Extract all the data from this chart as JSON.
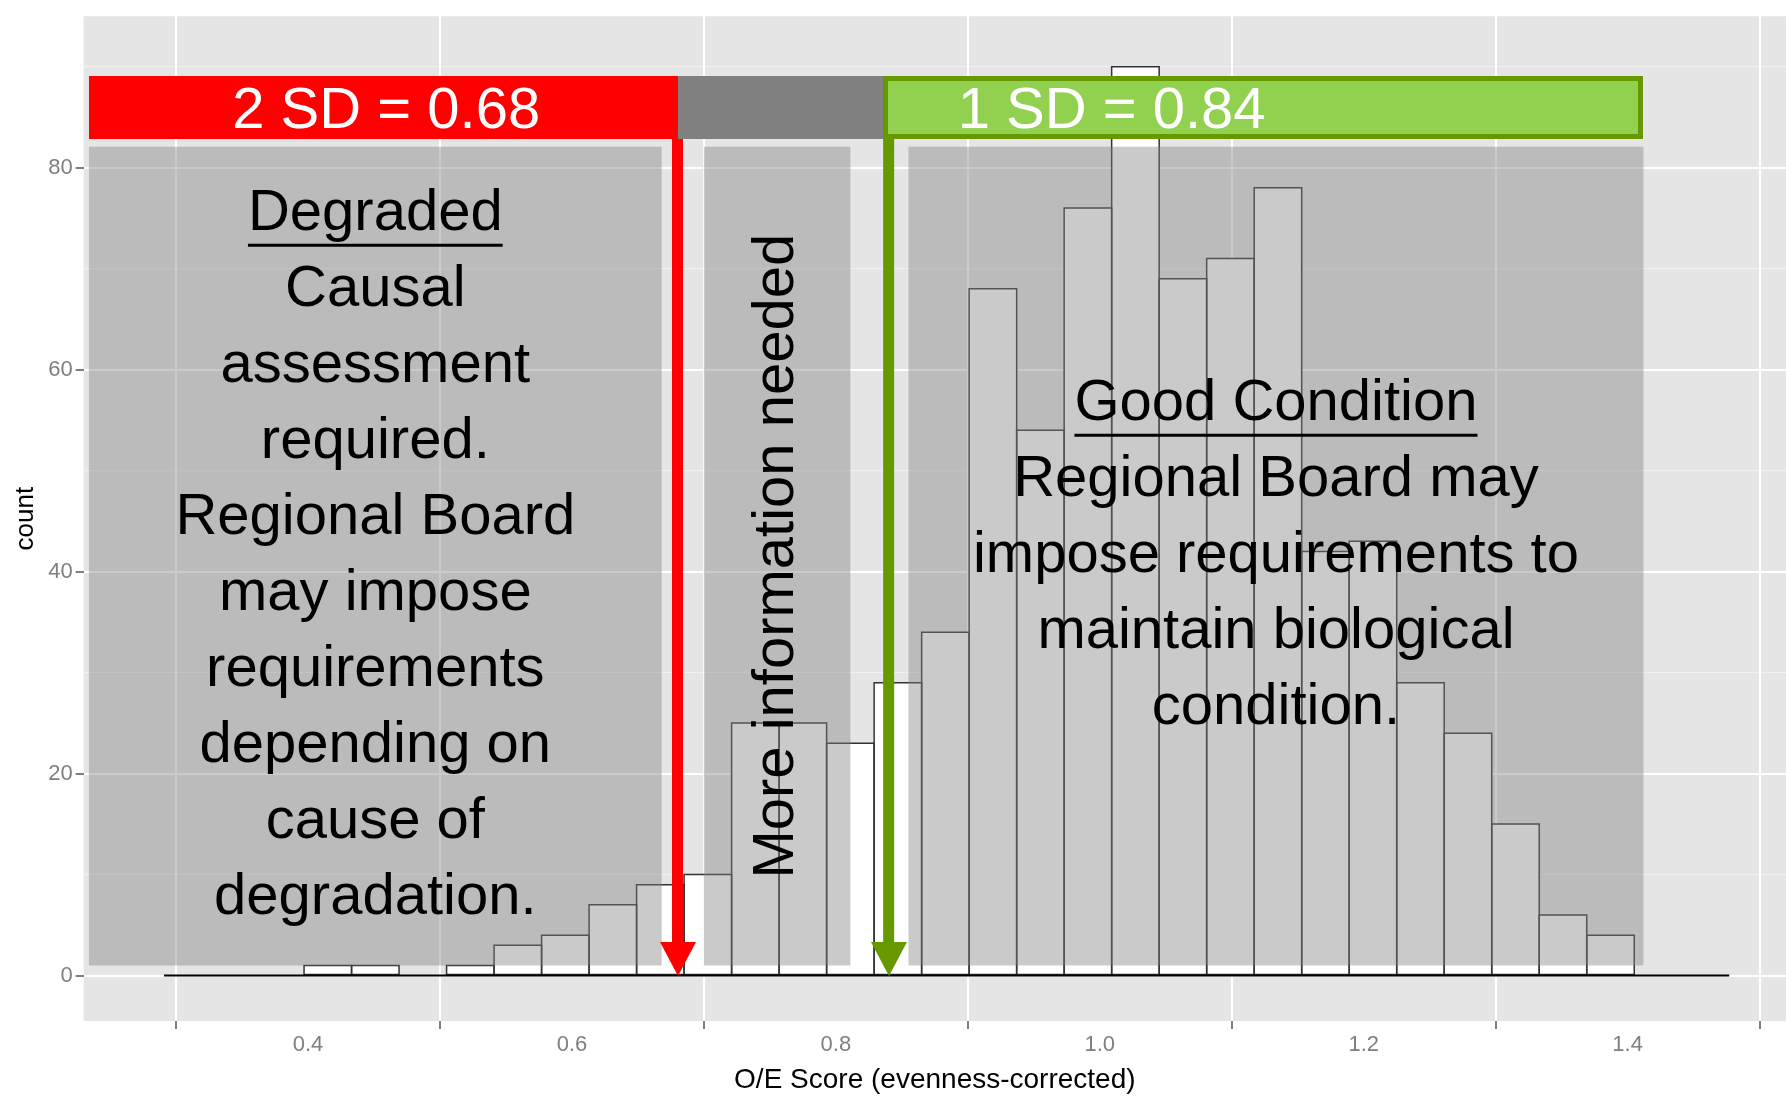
{
  "chart_data": {
    "type": "histogram",
    "xlabel": "O/E Score (evenness-corrected)",
    "ylabel": "count",
    "bins": [
      0.397,
      0.433,
      0.469,
      0.505,
      0.541,
      0.577,
      0.613,
      0.649,
      0.685,
      0.721,
      0.757,
      0.793,
      0.829,
      0.865,
      0.901,
      0.937,
      0.973,
      1.009,
      1.045,
      1.081,
      1.117,
      1.153,
      1.189,
      1.225,
      1.261,
      1.297,
      1.333,
      1.369,
      1.405
    ],
    "values": [
      1,
      1,
      0,
      1,
      3,
      4,
      7,
      9,
      10,
      25,
      25,
      23,
      29,
      34,
      68,
      54,
      76,
      90,
      69,
      71,
      78,
      42,
      43,
      29,
      24,
      15,
      6,
      4
    ],
    "color": "#ffffff",
    "xlim": [
      0.23,
      1.52
    ],
    "ylim": [
      -4.5,
      95
    ],
    "xticks": [
      0.4,
      0.6,
      0.8,
      {
        "value": 1,
        "label": "1.0"
      },
      1.2,
      1.4
    ],
    "yticks": [
      0,
      20,
      40,
      60,
      80
    ],
    "grid": true,
    "ref_lines": [
      {
        "axis": "x",
        "value": 0.68,
        "label": "2 SD = 0.68",
        "color": "#ff0000"
      },
      {
        "axis": "x",
        "value": 0.84,
        "label": "1 SD = 0.84",
        "color": "#669900"
      },
      {
        "axis": "y",
        "value": 0,
        "color": "#000000"
      }
    ],
    "bands": [
      {
        "axis": "x",
        "from": 0.234,
        "to": 0.668,
        "label": "Degraded\nCausal\nassessment\nrequired.\nRegional Board\nmay impose\nrequirements\ndepending on\ncause of\ndegradation.",
        "color": "#808080"
      },
      {
        "axis": "x",
        "from": 0.7,
        "to": 0.811,
        "label": "More information needed",
        "color": "#808080"
      },
      {
        "axis": "x",
        "from": 0.855,
        "to": 1.412,
        "label": "Good Condition\nRegional Board may\nimpose requirements to\nmaintain biological\ncondition.",
        "color": "#808080"
      }
    ]
  }
}
